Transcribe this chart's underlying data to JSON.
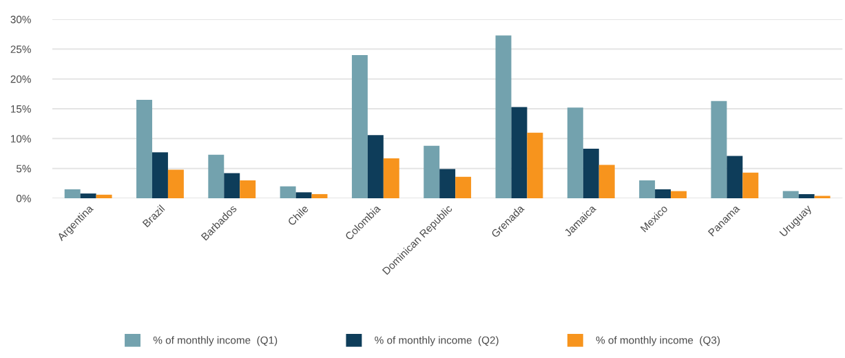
{
  "chart_data": {
    "type": "bar",
    "categories": [
      "Argentina",
      "Brazil",
      "Barbados",
      "Chile",
      "Colombia",
      "Dominican Republic",
      "Grenada",
      "Jamaica",
      "Mexico",
      "Panama",
      "Uruguay"
    ],
    "series": [
      {
        "name": "% of monthly income  (Q1)",
        "color": "#73a2ae",
        "values": [
          1.5,
          16.5,
          7.3,
          2.0,
          24.0,
          8.8,
          27.3,
          15.2,
          3.0,
          16.3,
          1.2
        ]
      },
      {
        "name": "% of monthly income  (Q2)",
        "color": "#0e3d5a",
        "values": [
          0.8,
          7.7,
          4.2,
          1.0,
          10.6,
          4.9,
          15.3,
          8.3,
          1.5,
          7.1,
          0.7
        ]
      },
      {
        "name": "% of monthly income  (Q3)",
        "color": "#f7941d",
        "values": [
          0.6,
          4.8,
          3.0,
          0.7,
          6.7,
          3.6,
          11.0,
          5.6,
          1.2,
          4.3,
          0.4
        ]
      }
    ],
    "ylim": [
      0,
      30
    ],
    "yticks": [
      {
        "value": 0,
        "label": "0%"
      },
      {
        "value": 5,
        "label": "5%"
      },
      {
        "value": 10,
        "label": "10%"
      },
      {
        "value": 15,
        "label": "15%"
      },
      {
        "value": 20,
        "label": "20%"
      },
      {
        "value": 25,
        "label": "25%"
      },
      {
        "value": 30,
        "label": "30%"
      }
    ],
    "grid": "y",
    "legend": "bottom"
  }
}
